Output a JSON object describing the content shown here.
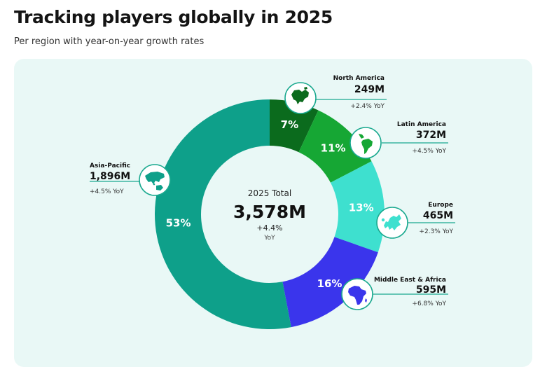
{
  "title": "Tracking players globally in 2025",
  "subtitle": "Per region with year-on-year growth rates",
  "center": {
    "label": "2025 Total",
    "total": "3,578M",
    "yoy": "+4.4%",
    "yoy_unit": "YoY"
  },
  "colors": {
    "panel": "#e9f8f6",
    "north_america": "#0b6b1d",
    "latin_america": "#16a734",
    "europe": "#3ee0cf",
    "middle_east_africa": "#3a35ec",
    "asia_pacific": "#0ea08a"
  },
  "chart_data": {
    "type": "pie",
    "variant": "donut",
    "title": "Tracking players globally in 2025",
    "subtitle": "Per region with year-on-year growth rates",
    "unit": "M",
    "series": [
      {
        "name": "North America",
        "value": 249,
        "percent": 7,
        "value_label": "249M",
        "yoy": "+2.4% YoY",
        "pct_label": "7%",
        "color": "#0b6b1d",
        "icon": "north-america-map-icon"
      },
      {
        "name": "Latin America",
        "value": 372,
        "percent": 11,
        "value_label": "372M",
        "yoy": "+4.5% YoY",
        "pct_label": "11%",
        "color": "#16a734",
        "icon": "latin-america-map-icon"
      },
      {
        "name": "Europe",
        "value": 465,
        "percent": 13,
        "value_label": "465M",
        "yoy": "+2.3% YoY",
        "pct_label": "13%",
        "color": "#3ee0cf",
        "icon": "europe-map-icon"
      },
      {
        "name": "Middle East & Africa",
        "value": 595,
        "percent": 16,
        "value_label": "595M",
        "yoy": "+6.8% YoY",
        "pct_label": "16%",
        "color": "#3a35ec",
        "icon": "africa-map-icon"
      },
      {
        "name": "Asia-Pacific",
        "value": 1896,
        "percent": 53,
        "value_label": "1,896M",
        "yoy": "+4.5% YoY",
        "pct_label": "53%",
        "color": "#0ea08a",
        "icon": "asia-pacific-map-icon"
      }
    ],
    "total": 3578,
    "total_yoy": "+4.4%"
  }
}
